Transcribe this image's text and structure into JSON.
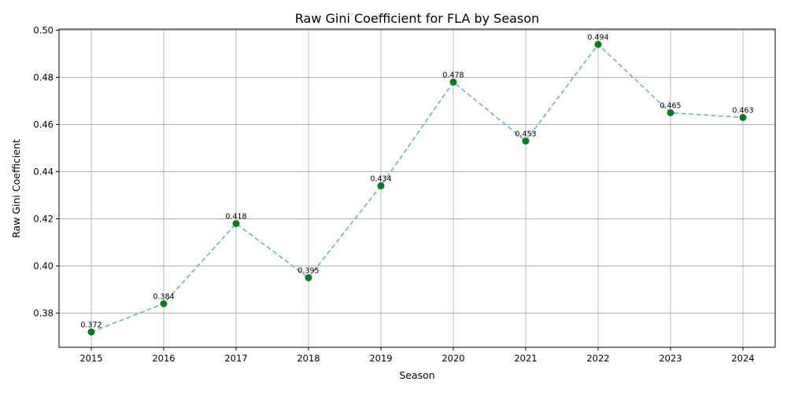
{
  "chart_data": {
    "type": "line",
    "title": "Raw Gini Coefficient for FLA by Season",
    "xlabel": "Season",
    "ylabel": "Raw Gini Coefficient",
    "x": [
      "2015",
      "2016",
      "2017",
      "2018",
      "2019",
      "2020",
      "2021",
      "2022",
      "2023",
      "2024"
    ],
    "series": [
      {
        "values": [
          0.372,
          0.384,
          0.418,
          0.395,
          0.434,
          0.478,
          0.453,
          0.494,
          0.465,
          0.463
        ],
        "data_labels": [
          "0.372",
          "0.384",
          "0.418",
          "0.395",
          "0.434",
          "0.478",
          "0.453",
          "0.494",
          "0.465",
          "0.463"
        ],
        "line_color": "#6baed6",
        "line_style": "dashed",
        "marker_color": "#0a7a1e"
      }
    ],
    "ylim": [
      0.3655,
      0.5005
    ],
    "y_ticks": [
      0.38,
      0.4,
      0.42,
      0.44,
      0.46,
      0.48,
      0.5
    ],
    "y_tick_labels": [
      "0.38",
      "0.40",
      "0.42",
      "0.44",
      "0.46",
      "0.48",
      "0.50"
    ],
    "grid": true,
    "legend": "none"
  }
}
